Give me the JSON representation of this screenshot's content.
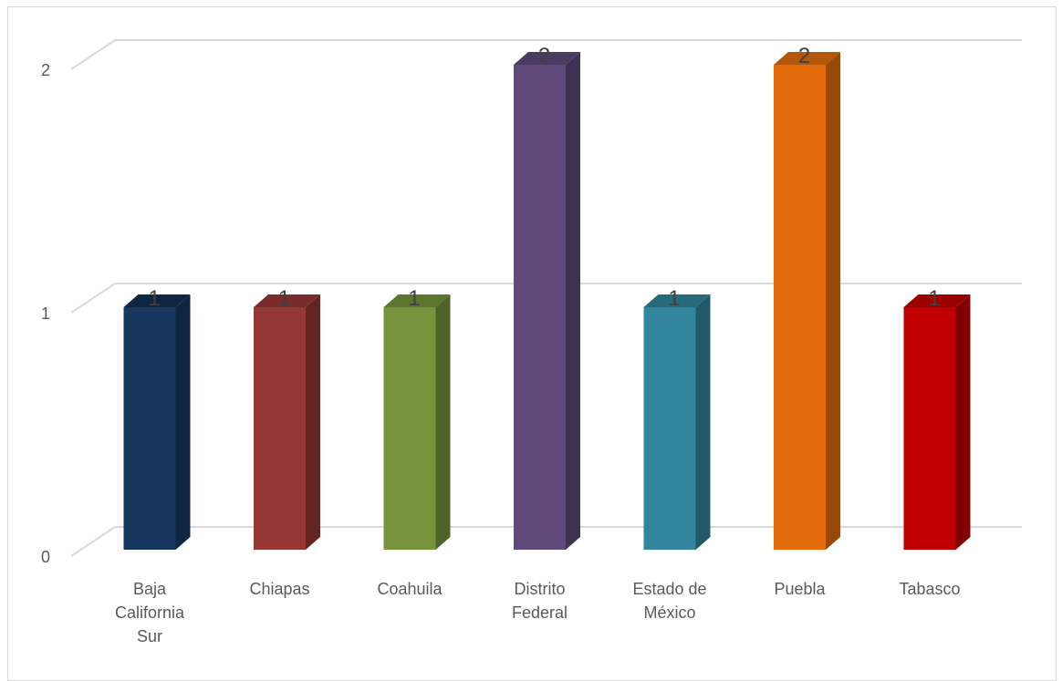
{
  "chart_data": {
    "type": "bar",
    "style": "3d-column",
    "categories": [
      [
        "Baja",
        "California",
        "Sur"
      ],
      [
        "Chiapas"
      ],
      [
        "Coahuila"
      ],
      [
        "Distrito",
        "Federal"
      ],
      [
        "Estado de",
        "México"
      ],
      [
        "Puebla"
      ],
      [
        "Tabasco"
      ]
    ],
    "values": [
      1,
      1,
      1,
      2,
      1,
      2,
      1
    ],
    "data_labels": [
      "1",
      "1",
      "1",
      "2",
      "1",
      "2",
      "1"
    ],
    "colors": [
      "#17375e",
      "#953735",
      "#77933c",
      "#604a7b",
      "#31859c",
      "#e46c0a",
      "#c00000"
    ],
    "side_colors": [
      "#10253f",
      "#632523",
      "#4f6228",
      "#3f3151",
      "#215968",
      "#984807",
      "#800000"
    ],
    "top_colors": [
      "#10253f",
      "#7a2c2a",
      "#5e7530",
      "#4b3a62",
      "#276a7c",
      "#b45708",
      "#9a0000"
    ],
    "yticks": [
      "0",
      "1",
      "2"
    ],
    "ylim": [
      0,
      2
    ],
    "grid": true,
    "title": "",
    "xlabel": "",
    "ylabel": ""
  }
}
